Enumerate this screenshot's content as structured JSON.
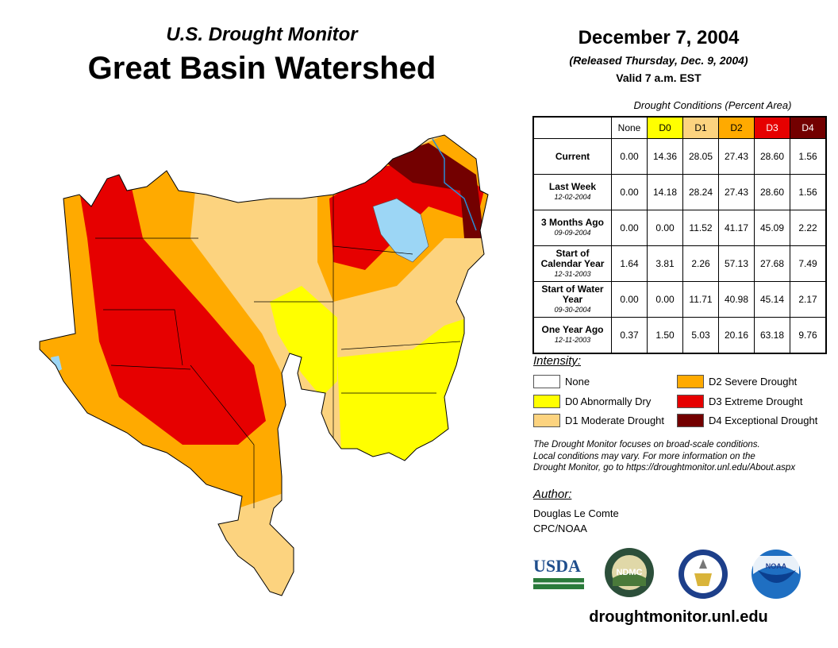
{
  "header": {
    "subtitle": "U.S. Drought Monitor",
    "title": "Great Basin Watershed",
    "date": "December 7, 2004",
    "released": "(Released Thursday, Dec. 9, 2004)",
    "valid": "Valid 7 a.m. EST"
  },
  "table": {
    "caption": "Drought Conditions (Percent Area)",
    "columns": [
      "None",
      "D0",
      "D1",
      "D2",
      "D3",
      "D4"
    ],
    "rows": [
      {
        "label": "Current",
        "date": "",
        "values": [
          "0.00",
          "14.36",
          "28.05",
          "27.43",
          "28.60",
          "1.56"
        ]
      },
      {
        "label": "Last Week",
        "date": "12-02-2004",
        "values": [
          "0.00",
          "14.18",
          "28.24",
          "27.43",
          "28.60",
          "1.56"
        ]
      },
      {
        "label": "3 Months Ago",
        "date": "09-09-2004",
        "values": [
          "0.00",
          "0.00",
          "11.52",
          "41.17",
          "45.09",
          "2.22"
        ]
      },
      {
        "label": "Start of Calendar Year",
        "date": "12-31-2003",
        "values": [
          "1.64",
          "3.81",
          "2.26",
          "57.13",
          "27.68",
          "7.49"
        ]
      },
      {
        "label": "Start of Water Year",
        "date": "09-30-2004",
        "values": [
          "0.00",
          "0.00",
          "11.71",
          "40.98",
          "45.14",
          "2.17"
        ]
      },
      {
        "label": "One Year Ago",
        "date": "12-11-2003",
        "values": [
          "0.37",
          "1.50",
          "5.03",
          "20.16",
          "63.18",
          "9.76"
        ]
      }
    ]
  },
  "legend": {
    "title": "Intensity:",
    "items": [
      {
        "label": "None",
        "color": "#ffffff"
      },
      {
        "label": "D0 Abnormally Dry",
        "color": "#ffff00"
      },
      {
        "label": "D1 Moderate Drought",
        "color": "#fcd37f"
      },
      {
        "label": "D2 Severe Drought",
        "color": "#ffaa00"
      },
      {
        "label": "D3 Extreme Drought",
        "color": "#e60000"
      },
      {
        "label": "D4 Exceptional Drought",
        "color": "#730000"
      }
    ]
  },
  "note": [
    "The Drought Monitor focuses on broad-scale conditions.",
    "Local conditions may vary. For more information on the",
    "Drought Monitor, go to https://droughtmonitor.unl.edu/About.aspx"
  ],
  "author": {
    "title": "Author:",
    "name": "Douglas Le Comte",
    "org": "CPC/NOAA"
  },
  "logos": {
    "usda": "USDA",
    "ndmc": "NDMC",
    "noaa": "NOAA"
  },
  "footer_url": "droughtmonitor.unl.edu"
}
